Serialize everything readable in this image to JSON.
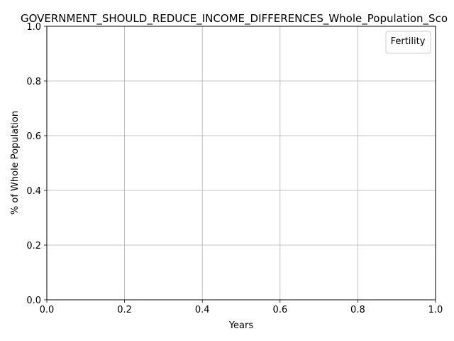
{
  "chart_data": {
    "type": "line",
    "title": "GOVERNMENT_SHOULD_REDUCE_INCOME_DIFFERENCES_Whole_Population_Sco",
    "xlabel": "Years",
    "ylabel": "% of Whole Population",
    "xlim": [
      0.0,
      1.0
    ],
    "ylim": [
      0.0,
      1.0
    ],
    "xticks": [
      "0.0",
      "0.2",
      "0.4",
      "0.6",
      "0.8",
      "1.0"
    ],
    "yticks": [
      "0.0",
      "0.2",
      "0.4",
      "0.6",
      "0.8",
      "1.0"
    ],
    "grid": true,
    "legend": {
      "title": "Fertility",
      "placement": "top-right",
      "entries": []
    },
    "series": []
  }
}
